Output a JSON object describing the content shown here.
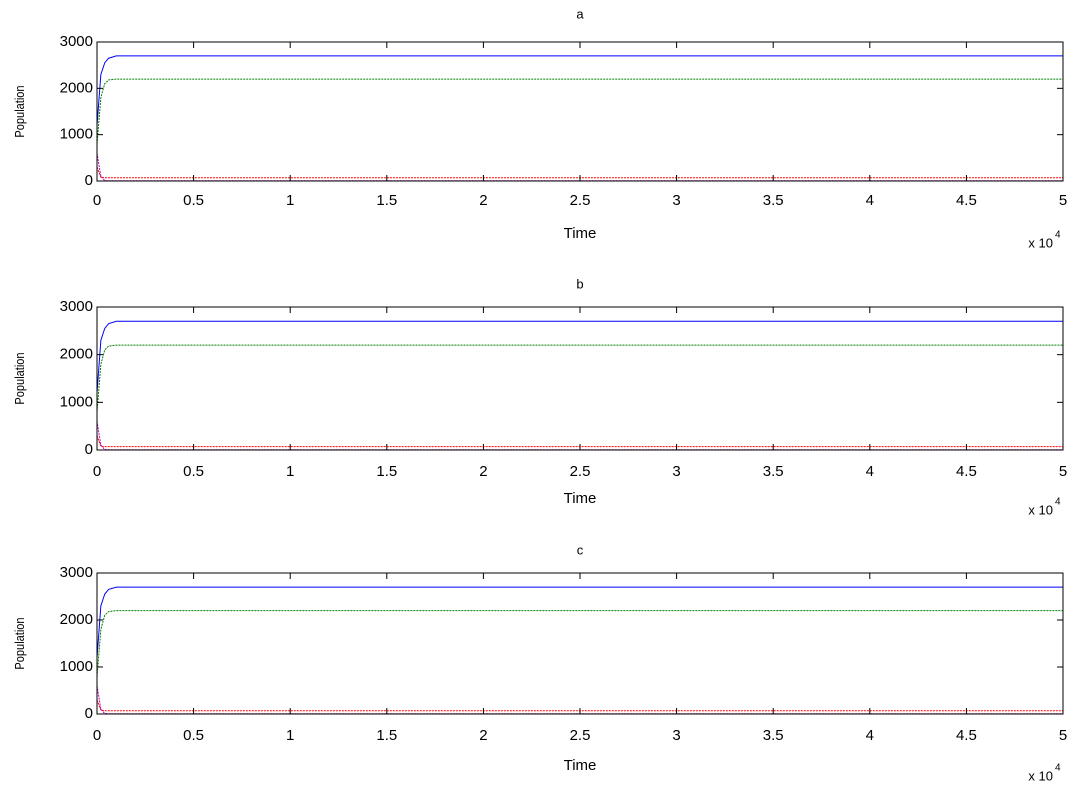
{
  "chart_data": [
    {
      "type": "line",
      "title": "a",
      "xlabel": "Time",
      "ylabel": "Population",
      "x_scale_base": "x 10",
      "x_scale_exponent": "4",
      "x": [
        0,
        0.02,
        0.04,
        0.06,
        0.1,
        0.2,
        5
      ],
      "series": [
        {
          "color": "#0000ff",
          "values": [
            1200,
            2300,
            2550,
            2650,
            2700,
            2700,
            2700
          ]
        },
        {
          "color": "#008000",
          "values": [
            800,
            1800,
            2100,
            2180,
            2200,
            2200,
            2200
          ]
        },
        {
          "color": "#ff0000",
          "values": [
            300,
            80,
            70,
            70,
            70,
            70,
            70
          ]
        },
        {
          "color": "#bf00bf",
          "values": [
            600,
            100,
            10,
            5,
            5,
            5,
            5
          ]
        }
      ],
      "xlim": [
        0,
        5
      ],
      "xticks": [
        0,
        0.5,
        1,
        1.5,
        2,
        2.5,
        3,
        3.5,
        4,
        4.5,
        5
      ],
      "ylim": [
        0,
        3000
      ],
      "yticks": [
        0,
        1000,
        2000,
        3000
      ]
    },
    {
      "type": "line",
      "title": "b",
      "xlabel": "Time",
      "ylabel": "Population",
      "x_scale_base": "x 10",
      "x_scale_exponent": "4",
      "x": [
        0,
        0.02,
        0.04,
        0.06,
        0.1,
        0.2,
        5
      ],
      "series": [
        {
          "color": "#0000ff",
          "values": [
            1200,
            2300,
            2550,
            2650,
            2700,
            2700,
            2700
          ]
        },
        {
          "color": "#008000",
          "values": [
            800,
            1800,
            2100,
            2180,
            2200,
            2200,
            2200
          ]
        },
        {
          "color": "#ff0000",
          "values": [
            300,
            80,
            70,
            70,
            70,
            70,
            70
          ]
        },
        {
          "color": "#bf00bf",
          "values": [
            600,
            100,
            10,
            5,
            5,
            5,
            5
          ]
        }
      ],
      "xlim": [
        0,
        5
      ],
      "xticks": [
        0,
        0.5,
        1,
        1.5,
        2,
        2.5,
        3,
        3.5,
        4,
        4.5,
        5
      ],
      "ylim": [
        0,
        3000
      ],
      "yticks": [
        0,
        1000,
        2000,
        3000
      ]
    },
    {
      "type": "line",
      "title": "c",
      "xlabel": "Time",
      "ylabel": "Population",
      "x_scale_base": "x 10",
      "x_scale_exponent": "4",
      "x": [
        0,
        0.02,
        0.04,
        0.06,
        0.1,
        0.2,
        5
      ],
      "series": [
        {
          "color": "#0000ff",
          "values": [
            1200,
            2300,
            2550,
            2650,
            2700,
            2700,
            2700
          ]
        },
        {
          "color": "#008000",
          "values": [
            800,
            1800,
            2100,
            2180,
            2200,
            2200,
            2200
          ]
        },
        {
          "color": "#ff0000",
          "values": [
            300,
            80,
            70,
            70,
            70,
            70,
            70
          ]
        },
        {
          "color": "#bf00bf",
          "values": [
            600,
            100,
            10,
            5,
            5,
            5,
            5
          ]
        }
      ],
      "xlim": [
        0,
        5
      ],
      "xticks": [
        0,
        0.5,
        1,
        1.5,
        2,
        2.5,
        3,
        3.5,
        4,
        4.5,
        5
      ],
      "ylim": [
        0,
        3000
      ],
      "yticks": [
        0,
        1000,
        2000,
        3000
      ]
    }
  ]
}
